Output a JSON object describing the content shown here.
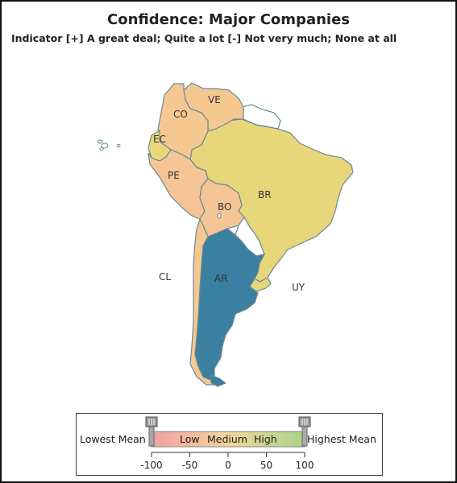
{
  "title": "Confidence: Major Companies",
  "subtitle": "Indicator [+] A great deal; Quite a lot [-] Not very much; None at all",
  "countries": [
    {
      "code": "VE",
      "color": "#f6c891"
    },
    {
      "code": "CO",
      "color": "#f6c891"
    },
    {
      "code": "EC",
      "color": "#e9d77a"
    },
    {
      "code": "PE",
      "color": "#f6c596"
    },
    {
      "code": "BR",
      "color": "#e8d67a"
    },
    {
      "code": "BO",
      "color": "#f6c596"
    },
    {
      "code": "CL",
      "color": "#f6c891"
    },
    {
      "code": "AR",
      "color": "#3b7fa1"
    },
    {
      "code": "UY",
      "color": "#e8d67a"
    }
  ],
  "no_data_color": "#ffffff",
  "legend": {
    "lowest_label": "Lowest Mean",
    "highest_label": "Highest Mean",
    "band_labels": [
      "Low",
      "Medium",
      "High"
    ],
    "ticks": [
      "-100",
      "-50",
      "0",
      "50",
      "100"
    ],
    "range": [
      -100,
      100
    ],
    "gradient": [
      "#f0a0a0",
      "#f3d69c",
      "#a9d48a"
    ]
  }
}
